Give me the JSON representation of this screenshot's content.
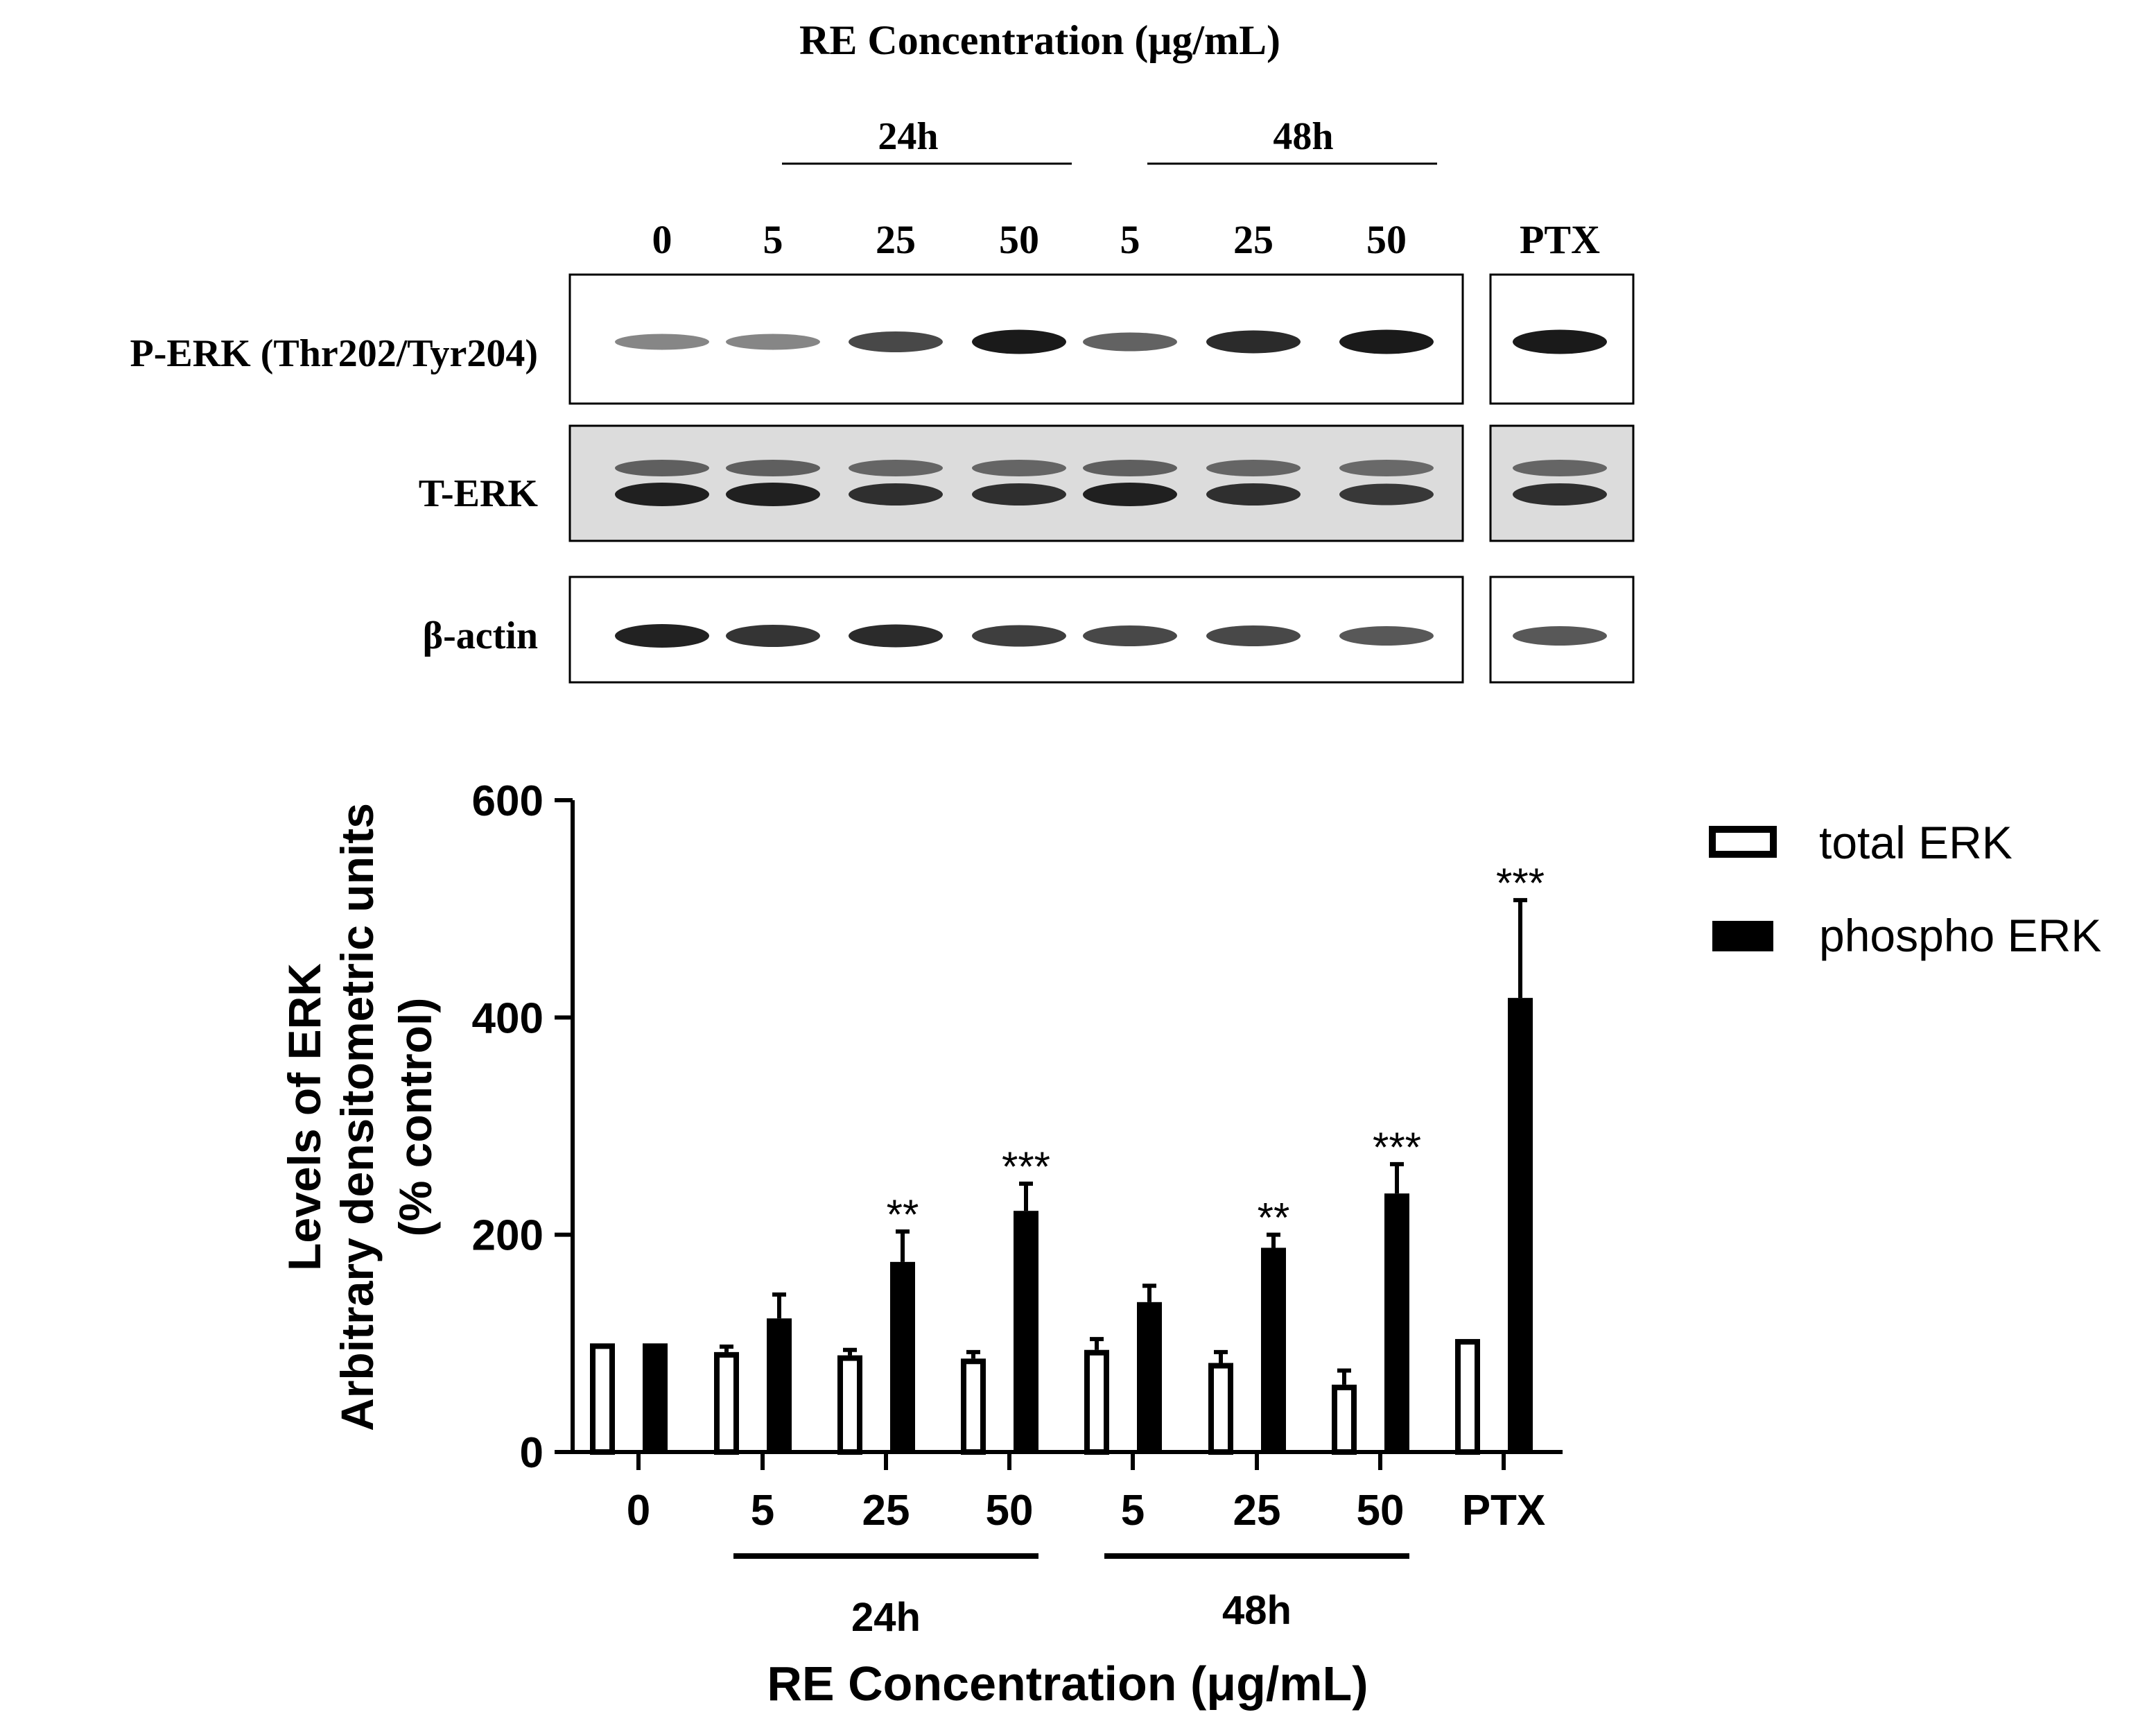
{
  "blot": {
    "title": "RE Concentration (μg/mL)",
    "group_24h": "24h",
    "group_48h": "48h",
    "lanes": [
      "0",
      "5",
      "25",
      "50",
      "5",
      "25",
      "50",
      "PTX"
    ],
    "rows": [
      {
        "label": "P-ERK (Thr202/Tyr204)",
        "band_intensity": [
          0.35,
          0.35,
          0.7,
          0.95,
          0.55,
          0.85,
          0.95,
          0.95
        ]
      },
      {
        "label": "T-ERK",
        "band_intensity": [
          0.9,
          0.9,
          0.8,
          0.8,
          0.9,
          0.8,
          0.75,
          0.8
        ]
      },
      {
        "label": "β-actin",
        "band_intensity": [
          0.9,
          0.8,
          0.85,
          0.75,
          0.7,
          0.7,
          0.6,
          0.6
        ]
      }
    ]
  },
  "chart_data": {
    "type": "bar",
    "ylabel_line1": "Levels of ERK",
    "ylabel_line2": "Arbitrary densitometric units",
    "ylabel_line3": "(% control)",
    "xlabel": "RE Concentration (μg/mL)",
    "ylim": [
      0,
      600
    ],
    "yticks": [
      "0",
      "200",
      "400",
      "600"
    ],
    "categories": [
      "0",
      "5",
      "25",
      "50",
      "5",
      "25",
      "50",
      "PTX"
    ],
    "group_labels": [
      "24h",
      "48h"
    ],
    "series": [
      {
        "name": "total ERK",
        "fill": "#ffffff",
        "values": [
          100,
          92,
          89,
          86,
          94,
          82,
          62,
          104
        ],
        "errors": [
          0,
          5,
          5,
          6,
          10,
          10,
          13,
          0
        ]
      },
      {
        "name": "phospho ERK",
        "fill": "#000000",
        "values": [
          100,
          123,
          175,
          222,
          138,
          188,
          238,
          418
        ],
        "errors": [
          0,
          22,
          28,
          25,
          15,
          12,
          27,
          90
        ]
      }
    ],
    "significance": [
      "",
      "",
      "**",
      "***",
      "",
      "**",
      "***",
      "***"
    ],
    "legend_position": "top-right"
  }
}
